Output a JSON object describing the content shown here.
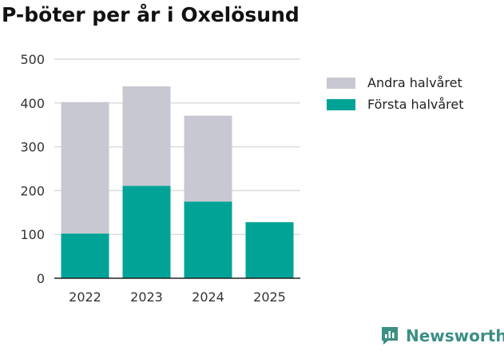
{
  "chart_data": {
    "type": "bar",
    "stacked": true,
    "title": "P-böter per år i Oxelösund",
    "categories": [
      "2022",
      "2023",
      "2024",
      "2025"
    ],
    "series": [
      {
        "name": "Första halvåret",
        "values": [
          102,
          211,
          175,
          128
        ],
        "color": "#00a396"
      },
      {
        "name": "Andra halvåret",
        "values": [
          300,
          227,
          196,
          0
        ],
        "color": "#c8c8d2"
      }
    ],
    "yticks": [
      "0",
      "100",
      "200",
      "300",
      "400",
      "500"
    ],
    "ylim": [
      0,
      500
    ],
    "xlabel": "",
    "ylabel": "",
    "grid": true,
    "legend_position": "right"
  },
  "legend": [
    {
      "label": "Andra halvåret",
      "color": "#c8c8d2"
    },
    {
      "label": "Första halvåret",
      "color": "#00a396"
    }
  ],
  "brand": {
    "name": "Newsworthy",
    "color": "#3c8f85"
  }
}
